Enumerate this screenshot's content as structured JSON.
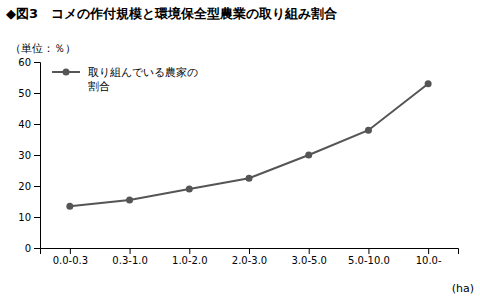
{
  "chart_data": {
    "type": "line",
    "title": "◆図3　コメの作付規模と環境保全型農業の取り組み割合",
    "y_label": "（単位：％）",
    "x_label": "(ha)",
    "categories": [
      "0.0-0.3",
      "0.3-1.0",
      "1.0-2.0",
      "2.0-3.0",
      "3.0-5.0",
      "5.0-10.0",
      "10.0-"
    ],
    "series": [
      {
        "name": "取り組んでいる農家の\n割合",
        "color": "#555555",
        "marker": "circle",
        "values": [
          13.5,
          15.5,
          19.0,
          22.5,
          30.0,
          38.0,
          53.0
        ]
      }
    ],
    "ylim": [
      0,
      60
    ],
    "yticks": [
      0,
      10,
      20,
      30,
      40,
      50,
      60
    ],
    "grid": false,
    "legend": "top-left"
  }
}
